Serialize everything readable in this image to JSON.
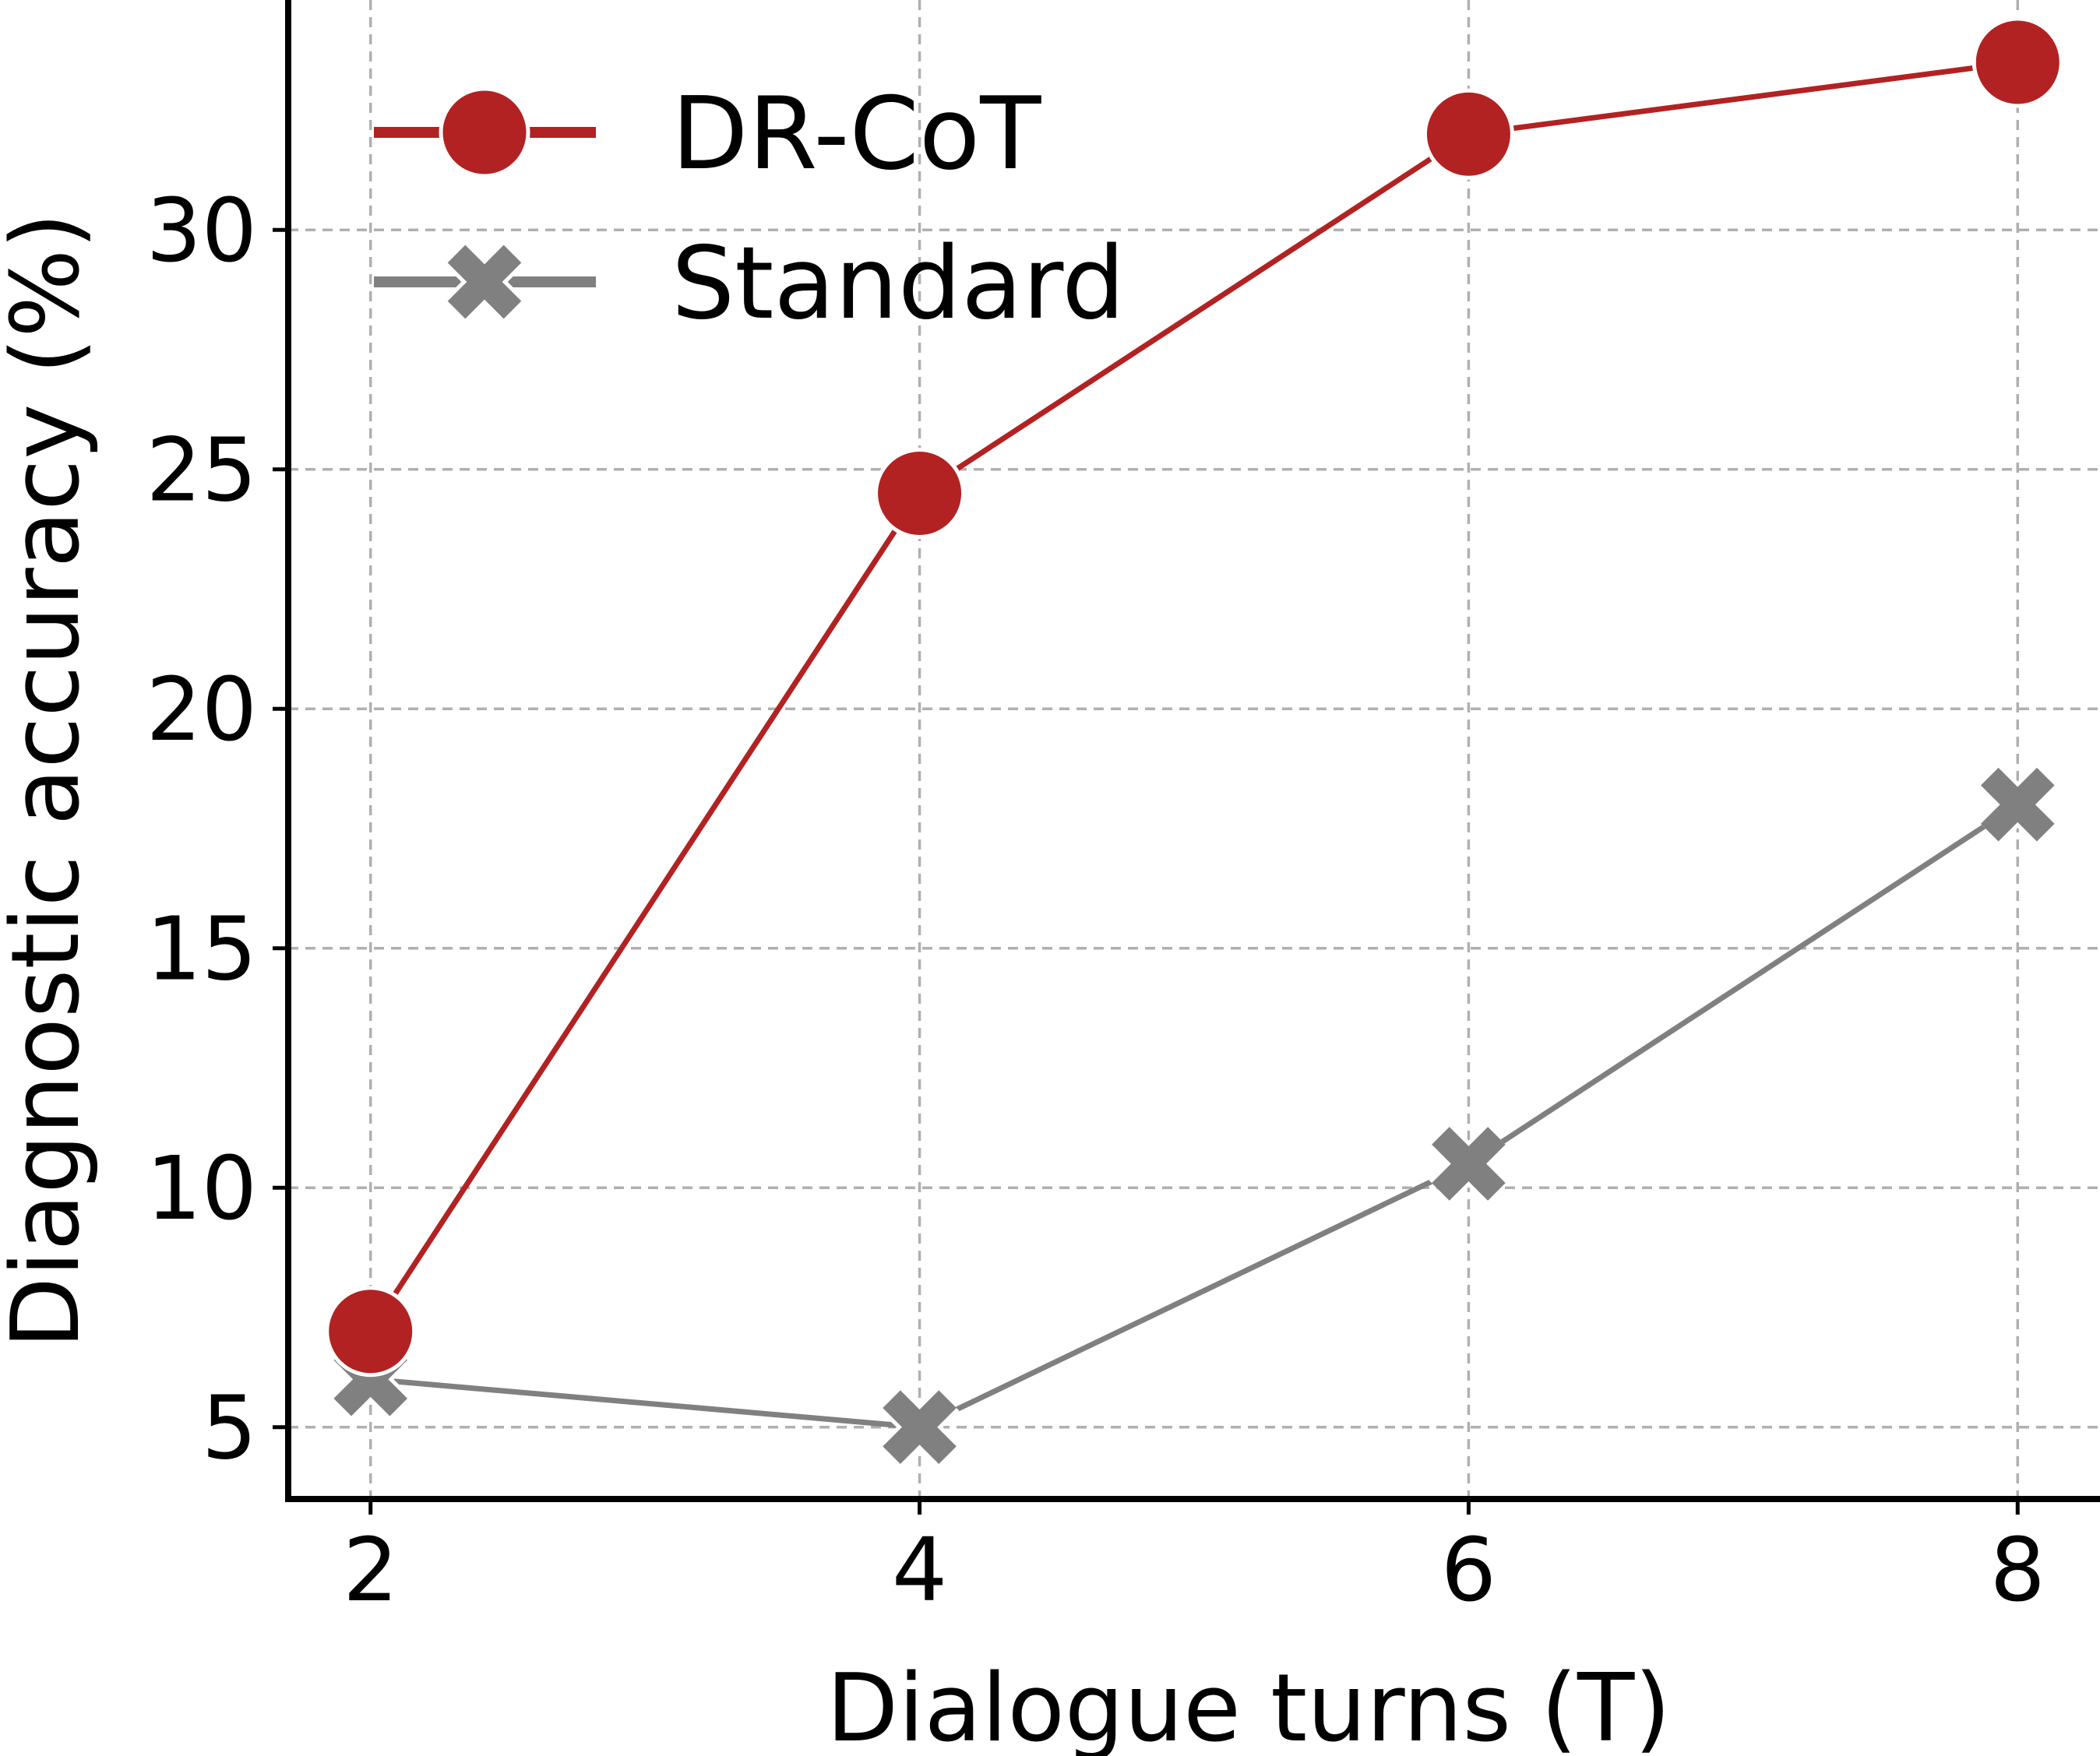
{
  "chart_data": {
    "type": "line",
    "title": "",
    "xlabel": "Dialogue turns (T)",
    "ylabel": "Diagnostic accuracy (%)",
    "x": [
      2,
      4,
      6,
      8
    ],
    "xticks": [
      "2",
      "4",
      "6",
      "8"
    ],
    "yticks": [
      "5",
      "10",
      "15",
      "20",
      "25",
      "30"
    ],
    "xlim": [
      1.7,
      8.3
    ],
    "ylim": [
      3.5,
      34.8
    ],
    "grid": true,
    "legend_position": "top-left",
    "series": [
      {
        "name": "DR-CoT",
        "values": [
          7.0,
          24.5,
          32.0,
          33.5
        ],
        "color": "#b22222",
        "marker": "circle"
      },
      {
        "name": "Standard",
        "values": [
          6.0,
          5.0,
          10.5,
          18.0
        ],
        "color": "#808080",
        "marker": "x"
      }
    ]
  }
}
